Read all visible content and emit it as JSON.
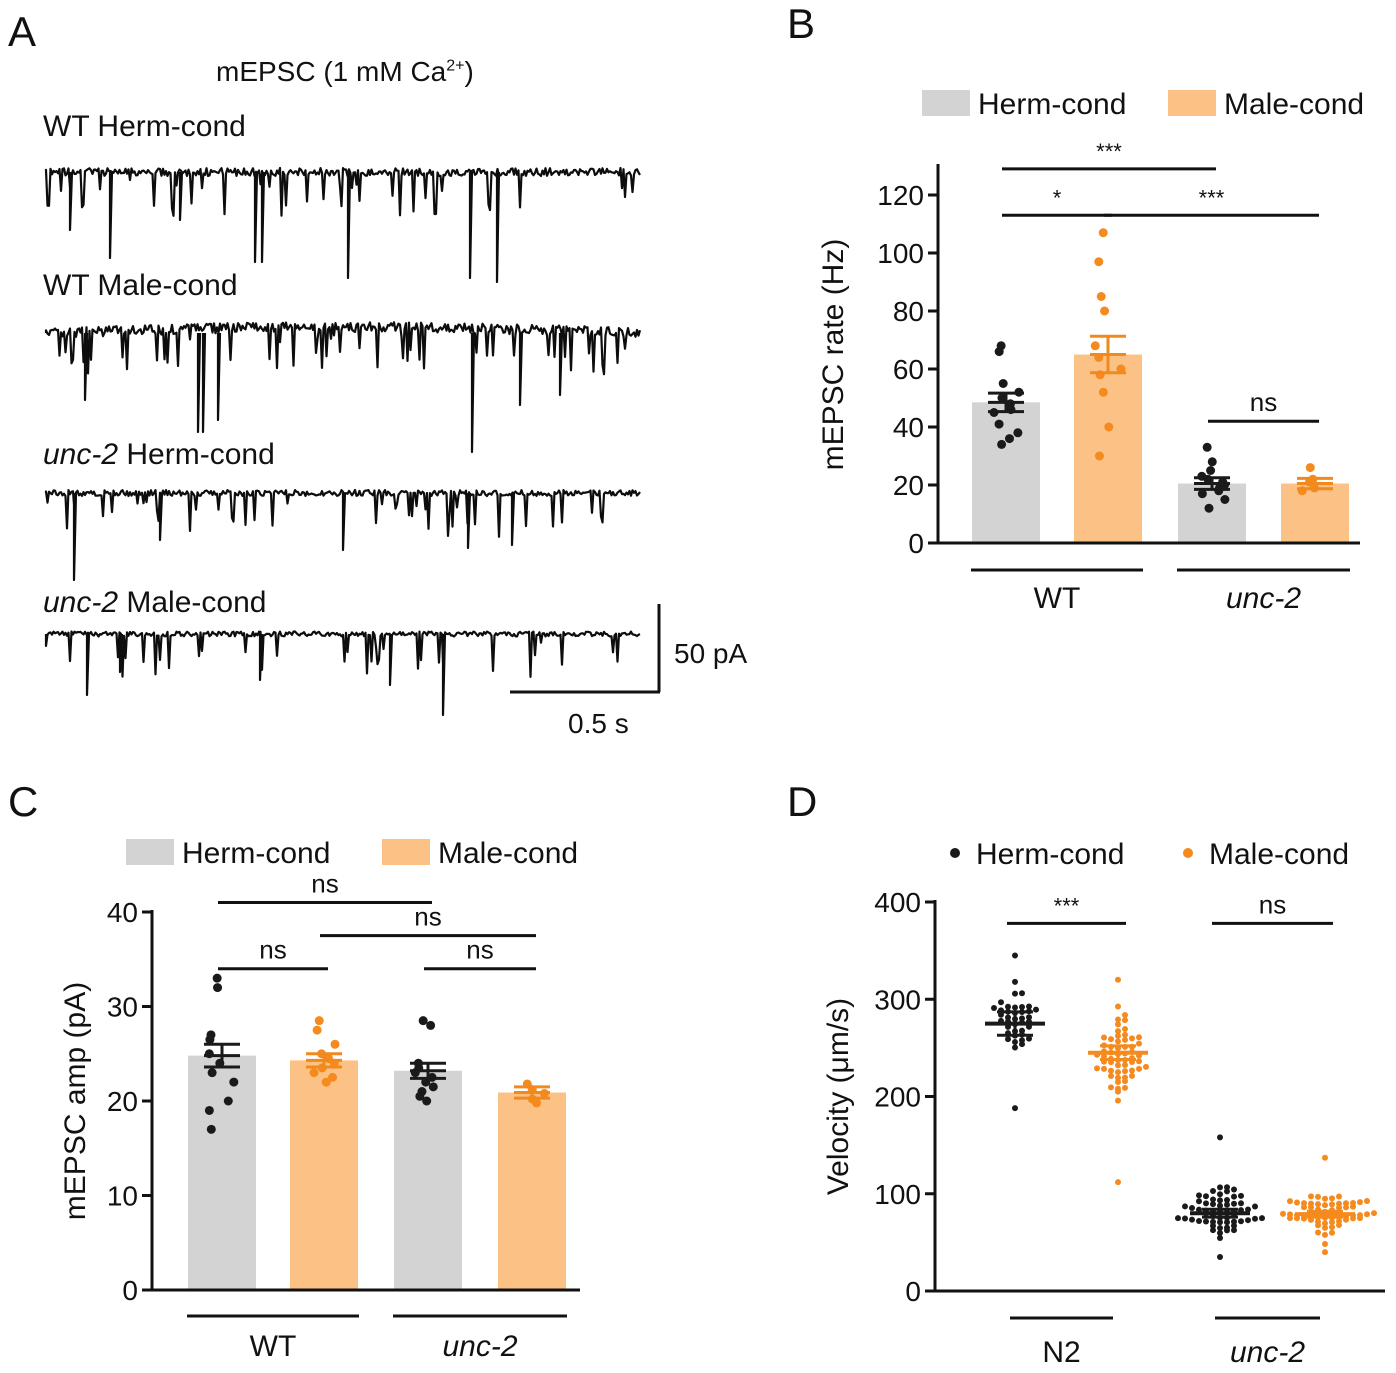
{
  "panels": {
    "A": {
      "letter": "A",
      "title_main": "mEPSC (1 mM Ca",
      "title_sup": "2+",
      "title_end": ")",
      "traces": [
        {
          "italic": "",
          "rest": "WT Herm-cond"
        },
        {
          "italic": "",
          "rest": "WT Male-cond"
        },
        {
          "italic": "unc-2",
          "rest": " Herm-cond"
        },
        {
          "italic": "unc-2",
          "rest": " Male-cond"
        }
      ],
      "scale_y": "50 pA",
      "scale_x": "0.5 s"
    },
    "B": {
      "letter": "B"
    },
    "C": {
      "letter": "C"
    },
    "D": {
      "letter": "D"
    }
  },
  "chart_data": [
    {
      "panel": "B",
      "type": "bar",
      "ylabel": "mEPSC rate (Hz)",
      "ylim": [
        0,
        130
      ],
      "yticks": [
        0,
        20,
        40,
        60,
        80,
        100,
        120
      ],
      "legend": [
        "Herm-cond",
        "Male-cond"
      ],
      "groups": [
        "WT",
        "unc-2"
      ],
      "group_italic": [
        false,
        true
      ],
      "colors": {
        "Herm-cond": "#d3d3d3",
        "Male-cond": "#fcc185",
        "Herm-dot": "#1a1a1a",
        "Male-dot": "#f58a1f"
      },
      "series": [
        {
          "name": "Herm-cond",
          "values": [
            48.5,
            20.5
          ],
          "sem": [
            3.2,
            2
          ],
          "points": [
            [
              68,
              66,
              55,
              52,
              50,
              48,
              46,
              45,
              41,
              38,
              36,
              34
            ],
            [
              33,
              28,
              25,
              23,
              22,
              21,
              20,
              19,
              18,
              17,
              15,
              12
            ]
          ]
        },
        {
          "name": "Male-cond",
          "values": [
            65,
            20.5
          ],
          "sem": [
            6.3,
            1.8
          ],
          "points": [
            [
              107,
              97,
              85,
              80,
              68,
              64,
              60,
              58,
              52,
              40,
              30
            ],
            [
              26,
              22,
              21,
              19,
              18
            ]
          ]
        }
      ],
      "annotations": [
        {
          "text": "***",
          "x1": [
            0,
            0
          ],
          "x2": [
            1,
            0
          ],
          "y": 129
        },
        {
          "text": "*",
          "x1": [
            0,
            0
          ],
          "x2": [
            0,
            1
          ],
          "y": 113
        },
        {
          "text": "***",
          "x1": [
            0,
            1
          ],
          "x2": [
            1,
            1
          ],
          "y": 113
        },
        {
          "text": "ns",
          "x1": [
            1,
            0
          ],
          "x2": [
            1,
            1
          ],
          "y": 42
        }
      ]
    },
    {
      "panel": "C",
      "type": "bar",
      "ylabel": "mEPSC amp (pA)",
      "ylim": [
        0,
        40
      ],
      "yticks": [
        0,
        10,
        20,
        30,
        40
      ],
      "legend": [
        "Herm-cond",
        "Male-cond"
      ],
      "groups": [
        "WT",
        "unc-2"
      ],
      "group_italic": [
        false,
        true
      ],
      "colors": {
        "Herm-cond": "#d3d3d3",
        "Male-cond": "#fcc185",
        "Herm-dot": "#1a1a1a",
        "Male-dot": "#f58a1f"
      },
      "series": [
        {
          "name": "Herm-cond",
          "values": [
            24.8,
            23.2
          ],
          "sem": [
            1.2,
            0.8
          ],
          "points": [
            [
              33,
              32,
              27,
              26.5,
              25,
              24,
              23,
              22,
              20,
              19,
              17
            ],
            [
              28.5,
              28,
              24,
              23.5,
              23,
              22.5,
              22,
              21.5,
              21,
              20.5,
              20
            ]
          ]
        },
        {
          "name": "Male-cond",
          "values": [
            24.3,
            20.9
          ],
          "sem": [
            0.7,
            0.6
          ],
          "points": [
            [
              28.5,
              27.5,
              26,
              25,
              24.5,
              24,
              23.5,
              23,
              22.5,
              22
            ],
            [
              21.8,
              21.2,
              20.8,
              20.2,
              19.8
            ]
          ]
        }
      ],
      "annotations": [
        {
          "text": "ns",
          "x1": [
            0,
            0
          ],
          "x2": [
            1,
            0
          ],
          "y": 41
        },
        {
          "text": "ns",
          "x1": [
            0,
            1
          ],
          "x2": [
            1,
            1
          ],
          "y": 37.5
        },
        {
          "text": "ns",
          "x1": [
            0,
            0
          ],
          "x2": [
            0,
            1
          ],
          "y": 34
        },
        {
          "text": "ns",
          "x1": [
            1,
            0
          ],
          "x2": [
            1,
            1
          ],
          "y": 34
        }
      ]
    },
    {
      "panel": "D",
      "type": "scatter",
      "ylabel": "Velocity (μm/s)",
      "ylim": [
        0,
        400
      ],
      "yticks": [
        0,
        100,
        200,
        300,
        400
      ],
      "legend": [
        "Herm-cond",
        "Male-cond"
      ],
      "groups": [
        "N2",
        "unc-2"
      ],
      "group_italic": [
        false,
        true
      ],
      "colors": {
        "Herm-cond": "#1a1a1a",
        "Male-cond": "#f58a1f"
      },
      "series": [
        {
          "name": "Herm-cond",
          "mean": [
            275,
            80
          ],
          "sem": [
            12,
            4
          ],
          "n": [
            40,
            60
          ],
          "sd": [
            35,
            24
          ],
          "min": [
            188,
            35
          ],
          "max": [
            345,
            158
          ]
        },
        {
          "name": "Male-cond",
          "mean": [
            245,
            79
          ],
          "sem": [
            7,
            3
          ],
          "n": [
            60,
            60
          ],
          "sd": [
            42,
            20
          ],
          "min": [
            112,
            40
          ],
          "max": [
            320,
            137
          ]
        }
      ],
      "annotations": [
        {
          "text": "***",
          "x1": [
            0,
            0
          ],
          "x2": [
            0,
            1
          ],
          "y": 378
        },
        {
          "text": "ns",
          "x1": [
            1,
            0
          ],
          "x2": [
            1,
            1
          ],
          "y": 378
        }
      ]
    }
  ]
}
